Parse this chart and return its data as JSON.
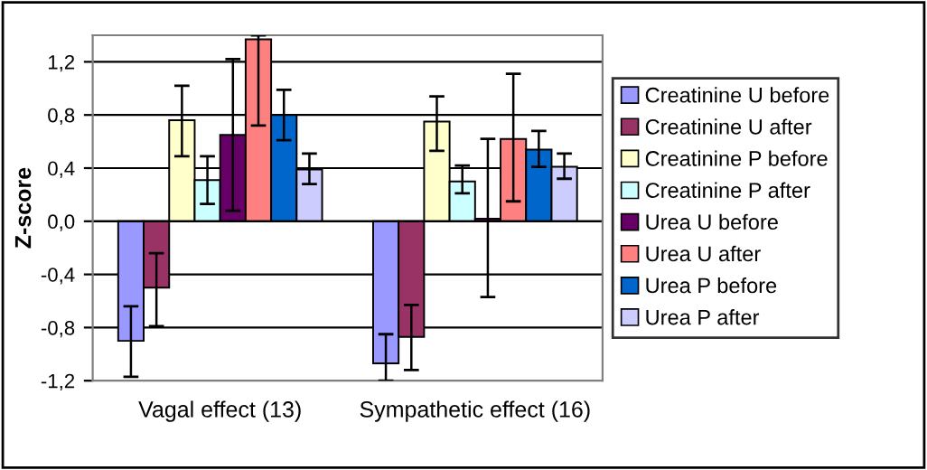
{
  "chart_data": {
    "type": "bar",
    "ylabel": "Z-score",
    "categories": [
      "Vagal effect (13)",
      "Sympathetic effect (16)"
    ],
    "ylim": [
      -1.2,
      1.4
    ],
    "yticks": [
      {
        "value": -1.2,
        "label": "-1,2"
      },
      {
        "value": -0.8,
        "label": "-0,8"
      },
      {
        "value": -0.4,
        "label": "-0,4"
      },
      {
        "value": 0,
        "label": "0,0"
      },
      {
        "value": 0.4,
        "label": "0,4"
      },
      {
        "value": 0.8,
        "label": "0,8"
      },
      {
        "value": 1.2,
        "label": "1,2"
      }
    ],
    "grid": "y",
    "legend": "right",
    "series": [
      {
        "name": "Creatinine U before",
        "color": "#9999ff",
        "values": [
          -0.9,
          -1.07
        ],
        "errors": [
          [
            -1.17,
            -0.64
          ],
          [
            -1.2,
            -0.85
          ]
        ]
      },
      {
        "name": "Creatinine U after",
        "color": "#993366",
        "values": [
          -0.5,
          -0.87
        ],
        "errors": [
          [
            -0.79,
            -0.24
          ],
          [
            -1.12,
            -0.63
          ]
        ]
      },
      {
        "name": "Creatinine P before",
        "color": "#ffffcc",
        "values": [
          0.76,
          0.75
        ],
        "errors": [
          [
            0.49,
            1.02
          ],
          [
            0.53,
            0.94
          ]
        ]
      },
      {
        "name": "Creatinine P after",
        "color": "#ccffff",
        "values": [
          0.31,
          0.3
        ],
        "errors": [
          [
            0.13,
            0.49
          ],
          [
            0.21,
            0.42
          ]
        ]
      },
      {
        "name": "Urea U before",
        "color": "#660066",
        "values": [
          0.65,
          0.02
        ],
        "errors": [
          [
            0.08,
            1.22
          ],
          [
            -0.57,
            0.62
          ]
        ]
      },
      {
        "name": "Urea U after",
        "color": "#ff8080",
        "values": [
          1.37,
          0.62
        ],
        "errors": [
          [
            0.72,
            1.4
          ],
          [
            0.15,
            1.11
          ]
        ]
      },
      {
        "name": "Urea P before",
        "color": "#0066cc",
        "values": [
          0.8,
          0.54
        ],
        "errors": [
          [
            0.61,
            0.99
          ],
          [
            0.41,
            0.68
          ]
        ]
      },
      {
        "name": "Urea P after",
        "color": "#ccccff",
        "values": [
          0.39,
          0.41
        ],
        "errors": [
          [
            0.28,
            0.51
          ],
          [
            0.32,
            0.51
          ]
        ]
      }
    ]
  }
}
